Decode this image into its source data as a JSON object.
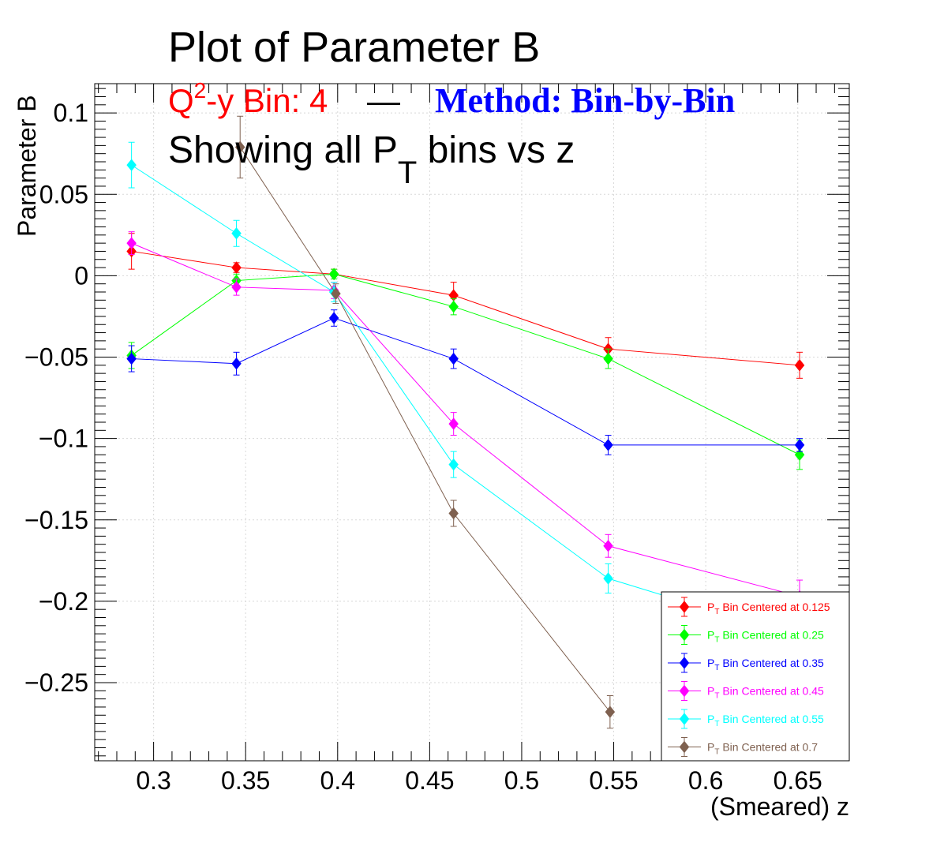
{
  "chart_data": {
    "type": "line",
    "title": "Plot of Parameter B",
    "subtitle": {
      "part1_prefix": "Q",
      "part1_sup": "2",
      "part1_suffix": "-y Bin: 4",
      "separator": "—",
      "method": "Method: Bin-by-Bin",
      "line2_prefix": "Showing all P",
      "line2_sub": "T",
      "line2_suffix": " bins vs z"
    },
    "xlabel": "(Smeared) z",
    "ylabel": "Parameter B",
    "xlim": [
      0.268,
      0.678
    ],
    "ylim": [
      -0.298,
      0.118
    ],
    "xticks": [
      {
        "v": 0.3,
        "label": "0.3"
      },
      {
        "v": 0.35,
        "label": "0.35"
      },
      {
        "v": 0.4,
        "label": "0.4"
      },
      {
        "v": 0.45,
        "label": "0.45"
      },
      {
        "v": 0.5,
        "label": "0.5"
      },
      {
        "v": 0.55,
        "label": "0.55"
      },
      {
        "v": 0.6,
        "label": "0.6"
      },
      {
        "v": 0.65,
        "label": "0.65"
      }
    ],
    "yticks": [
      {
        "v": 0.1,
        "label": "0.1"
      },
      {
        "v": 0.05,
        "label": "0.05"
      },
      {
        "v": 0,
        "label": "0"
      },
      {
        "v": -0.05,
        "label": "−0.05"
      },
      {
        "v": -0.1,
        "label": "−0.1"
      },
      {
        "v": -0.15,
        "label": "−0.15"
      },
      {
        "v": -0.2,
        "label": "−0.2"
      },
      {
        "v": -0.25,
        "label": "−0.25"
      }
    ],
    "grid": true,
    "legend_position": "bottom-right",
    "colors": {
      "subtitle_red": "#ff0000",
      "method_blue": "#0000ff",
      "frame": "#000000",
      "grid": "#d8d8d8"
    },
    "series": [
      {
        "name_prefix": "P",
        "name_sub": "T",
        "name_suffix": " Bin Centered at 0.125",
        "color": "#ff0000",
        "x": [
          0.288,
          0.345,
          0.398,
          0.463,
          0.547,
          0.651
        ],
        "y": [
          0.015,
          0.005,
          0.001,
          -0.012,
          -0.045,
          -0.055
        ],
        "err": [
          0.011,
          0.003,
          0.003,
          0.008,
          0.007,
          0.008
        ]
      },
      {
        "name_prefix": "P",
        "name_sub": "T",
        "name_suffix": " Bin Centered at 0.25",
        "color": "#00ff00",
        "x": [
          0.288,
          0.345,
          0.398,
          0.463,
          0.547,
          0.651
        ],
        "y": [
          -0.049,
          -0.003,
          0.001,
          -0.019,
          -0.051,
          -0.11
        ],
        "err": [
          0.008,
          0.004,
          0.003,
          0.005,
          0.006,
          0.009
        ]
      },
      {
        "name_prefix": "P",
        "name_sub": "T",
        "name_suffix": " Bin Centered at 0.35",
        "color": "#0000ff",
        "x": [
          0.288,
          0.345,
          0.398,
          0.463,
          0.547,
          0.651
        ],
        "y": [
          -0.051,
          -0.054,
          -0.026,
          -0.051,
          -0.104,
          -0.104
        ],
        "err": [
          0.008,
          0.007,
          0.005,
          0.006,
          0.006,
          0.004
        ]
      },
      {
        "name_prefix": "P",
        "name_sub": "T",
        "name_suffix": " Bin Centered at 0.45",
        "color": "#ff00ff",
        "x": [
          0.288,
          0.345,
          0.398,
          0.463,
          0.547,
          0.651
        ],
        "y": [
          0.02,
          -0.007,
          -0.009,
          -0.091,
          -0.166,
          -0.197
        ],
        "err": [
          0.007,
          0.005,
          0.005,
          0.007,
          0.007,
          0.01
        ]
      },
      {
        "name_prefix": "P",
        "name_sub": "T",
        "name_suffix": " Bin Centered at 0.55",
        "color": "#00ffff",
        "x": [
          0.288,
          0.345,
          0.398,
          0.463,
          0.547,
          0.651
        ],
        "y": [
          0.068,
          0.026,
          -0.01,
          -0.116,
          -0.186,
          -0.222
        ],
        "err": [
          0.014,
          0.008,
          0.006,
          0.008,
          0.009,
          0.01
        ]
      },
      {
        "name_prefix": "P",
        "name_sub": "T",
        "name_suffix": " Bin Centered at 0.7",
        "color": "#7f6150",
        "x": [
          0.347,
          0.399,
          0.463,
          0.548
        ],
        "y": [
          0.079,
          -0.011,
          -0.146,
          -0.268
        ],
        "err": [
          0.019,
          0.006,
          0.008,
          0.01
        ]
      }
    ]
  }
}
